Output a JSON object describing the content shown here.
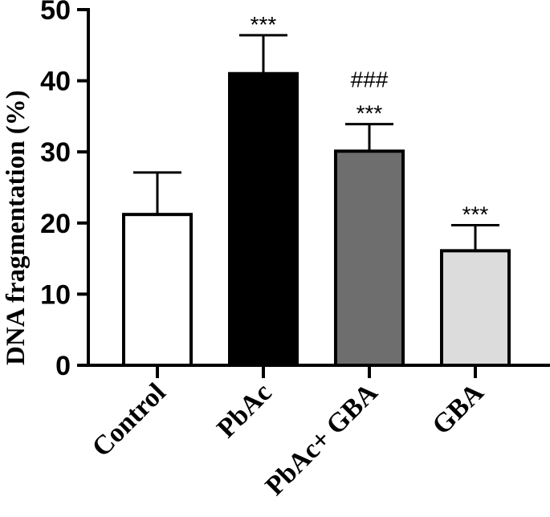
{
  "chart_data": {
    "type": "bar",
    "title": "",
    "xlabel": "",
    "ylabel": "DNA fragmentation (%)",
    "ylim": [
      0,
      50
    ],
    "yticks": [
      0,
      10,
      20,
      30,
      40,
      50
    ],
    "ytick_labels": [
      "0",
      "10",
      "20",
      "30",
      "40",
      "50"
    ],
    "categories": [
      "Control",
      "PbAc",
      "PbAc+ GBA",
      "GBA"
    ],
    "values": [
      21.2,
      41.0,
      30.1,
      16.1
    ],
    "errors": [
      5.9,
      5.4,
      3.8,
      3.6
    ],
    "bar_colors": [
      "#ffffff",
      "#000000",
      "#6e6e6e",
      "#dcdcdc"
    ],
    "annotations": [
      [],
      [
        "***"
      ],
      [
        "***",
        "###"
      ],
      [
        "***"
      ]
    ],
    "grid": false,
    "legend": "none"
  }
}
